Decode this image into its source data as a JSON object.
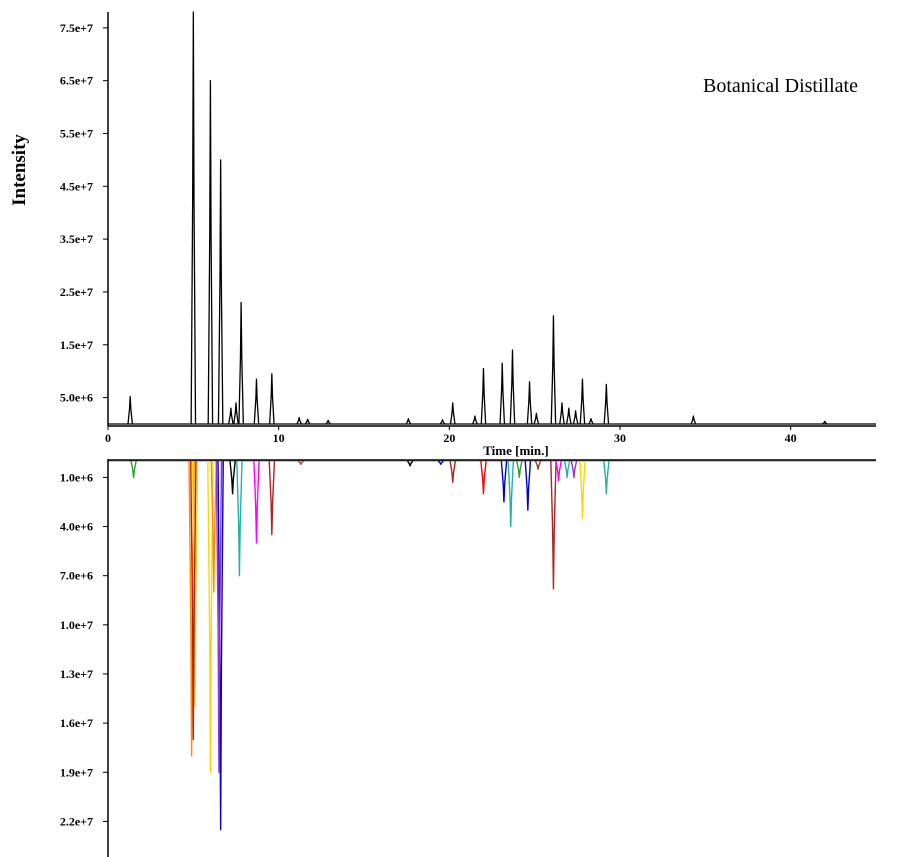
{
  "annotation": "Botanical Distillate",
  "ylabel": "Intensity",
  "xlabel": "Time [min.]",
  "chart_data": [
    {
      "type": "line",
      "panel": "total ion chromatogram",
      "title": "",
      "xlabel": "Time [min.]",
      "ylabel": "Intensity",
      "xlim": [
        0,
        45
      ],
      "ylim": [
        0,
        78000000
      ],
      "x_ticks": [
        0,
        10,
        20,
        30,
        40
      ],
      "x_tick_labels": [
        "0",
        "10",
        "20",
        "30",
        "40"
      ],
      "y_ticks": [
        5000000,
        15000000,
        25000000,
        35000000,
        45000000,
        55000000,
        65000000,
        75000000
      ],
      "y_tick_labels": [
        "5.0e+6",
        "1.5e+7",
        "2.5e+7",
        "3.5e+7",
        "4.5e+7",
        "5.5e+7",
        "6.5e+7",
        "7.5e+7"
      ],
      "grid": false,
      "color": "#000000",
      "peaks": [
        {
          "x": 1.3,
          "y": 5200000
        },
        {
          "x": 5.0,
          "y": 78000000
        },
        {
          "x": 6.0,
          "y": 65000000
        },
        {
          "x": 6.6,
          "y": 50000000
        },
        {
          "x": 7.2,
          "y": 3000000
        },
        {
          "x": 7.5,
          "y": 4000000
        },
        {
          "x": 7.8,
          "y": 23000000
        },
        {
          "x": 8.7,
          "y": 8500000
        },
        {
          "x": 9.6,
          "y": 9500000
        },
        {
          "x": 11.2,
          "y": 1200000
        },
        {
          "x": 11.7,
          "y": 900000
        },
        {
          "x": 12.9,
          "y": 700000
        },
        {
          "x": 17.6,
          "y": 1000000
        },
        {
          "x": 19.6,
          "y": 800000
        },
        {
          "x": 20.2,
          "y": 4000000
        },
        {
          "x": 21.5,
          "y": 1500000
        },
        {
          "x": 22.0,
          "y": 10500000
        },
        {
          "x": 23.1,
          "y": 11500000
        },
        {
          "x": 23.7,
          "y": 14000000
        },
        {
          "x": 24.7,
          "y": 8000000
        },
        {
          "x": 25.1,
          "y": 2000000
        },
        {
          "x": 26.1,
          "y": 20500000
        },
        {
          "x": 26.6,
          "y": 4000000
        },
        {
          "x": 27.0,
          "y": 3000000
        },
        {
          "x": 27.4,
          "y": 2500000
        },
        {
          "x": 27.8,
          "y": 8500000
        },
        {
          "x": 28.3,
          "y": 1000000
        },
        {
          "x": 29.2,
          "y": 7500000
        },
        {
          "x": 34.3,
          "y": 1500000
        },
        {
          "x": 42.0,
          "y": 500000
        }
      ]
    },
    {
      "type": "line",
      "panel": "deconvoluted component ion traces (inverted)",
      "title": "",
      "xlabel": "",
      "ylabel": "",
      "xlim": [
        0,
        45
      ],
      "ylim": [
        0,
        23500000
      ],
      "inverted": true,
      "y_ticks": [
        1000000,
        4000000,
        7000000,
        10000000,
        13000000,
        16000000,
        19000000,
        22000000
      ],
      "y_tick_labels": [
        "1.0e+6",
        "4.0e+6",
        "7.0e+6",
        "1.0e+7",
        "1.3e+7",
        "1.6e+7",
        "1.9e+7",
        "2.2e+7"
      ],
      "grid": false,
      "peaks": [
        {
          "x": 1.5,
          "y": 1000000,
          "color": "#2ca02c"
        },
        {
          "x": 4.9,
          "y": 18000000,
          "color": "#ff8c00"
        },
        {
          "x": 5.1,
          "y": 15000000,
          "color": "#ffd400"
        },
        {
          "x": 5.0,
          "y": 17000000,
          "color": "#b22222"
        },
        {
          "x": 6.0,
          "y": 19000000,
          "color": "#ffd400"
        },
        {
          "x": 6.2,
          "y": 8000000,
          "color": "#ff8c00"
        },
        {
          "x": 6.6,
          "y": 22500000,
          "color": "#0000cd"
        },
        {
          "x": 6.5,
          "y": 19000000,
          "color": "#9932cc"
        },
        {
          "x": 7.3,
          "y": 2000000,
          "color": "#000000"
        },
        {
          "x": 7.7,
          "y": 7000000,
          "color": "#20b2aa"
        },
        {
          "x": 8.7,
          "y": 5000000,
          "color": "#ff00ff"
        },
        {
          "x": 9.6,
          "y": 4500000,
          "color": "#b22222"
        },
        {
          "x": 11.3,
          "y": 200000,
          "color": "#a0522d"
        },
        {
          "x": 17.7,
          "y": 300000,
          "color": "#000000"
        },
        {
          "x": 19.5,
          "y": 200000,
          "color": "#0000cd"
        },
        {
          "x": 20.2,
          "y": 1300000,
          "color": "#b22222"
        },
        {
          "x": 22.0,
          "y": 2000000,
          "color": "#ff0000"
        },
        {
          "x": 23.2,
          "y": 2500000,
          "color": "#0000cd"
        },
        {
          "x": 23.6,
          "y": 4000000,
          "color": "#20b2aa"
        },
        {
          "x": 24.1,
          "y": 1000000,
          "color": "#2ca02c"
        },
        {
          "x": 24.6,
          "y": 3000000,
          "color": "#0000cd"
        },
        {
          "x": 25.2,
          "y": 500000,
          "color": "#8b4513"
        },
        {
          "x": 26.1,
          "y": 7800000,
          "color": "#b22222"
        },
        {
          "x": 26.4,
          "y": 1200000,
          "color": "#ff00ff"
        },
        {
          "x": 26.9,
          "y": 1000000,
          "color": "#20b2aa"
        },
        {
          "x": 27.3,
          "y": 1000000,
          "color": "#9932cc"
        },
        {
          "x": 27.8,
          "y": 3500000,
          "color": "#ffd400"
        },
        {
          "x": 29.2,
          "y": 2000000,
          "color": "#20b2aa"
        }
      ]
    }
  ]
}
